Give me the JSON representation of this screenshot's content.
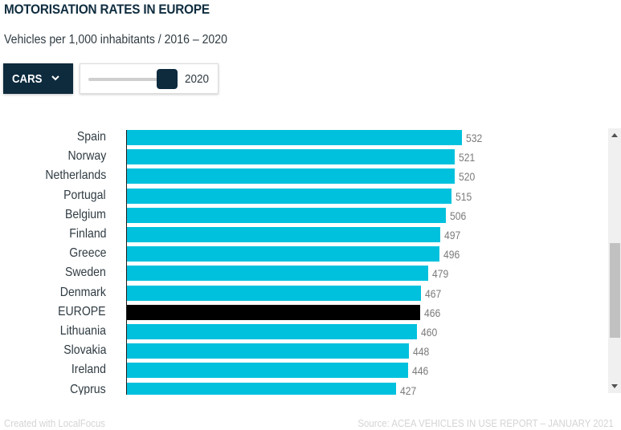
{
  "header": {
    "title": "MOTORISATION RATES IN EUROPE",
    "subtitle": "Vehicles per 1,000 inhabitants / 2016 – 2020"
  },
  "controls": {
    "vehicle_type": "CARS",
    "year_slider": {
      "min": 2016,
      "max": 2020,
      "value": 2020,
      "label": "2020"
    }
  },
  "colors": {
    "bar": "#00c1dd",
    "highlight": "#000000",
    "brand": "#0e2b3e"
  },
  "chart_data": {
    "type": "bar",
    "orientation": "horizontal",
    "title": "MOTORISATION RATES IN EUROPE",
    "subtitle": "Vehicles per 1,000 inhabitants / 2016 – 2020",
    "xlabel": "",
    "ylabel": "",
    "categories": [
      "Spain",
      "Norway",
      "Netherlands",
      "Portugal",
      "Belgium",
      "Finland",
      "Greece",
      "Sweden",
      "Denmark",
      "EUROPE",
      "Lithuania",
      "Slovakia",
      "Ireland",
      "Cyprus"
    ],
    "values": [
      532,
      521,
      520,
      515,
      506,
      497,
      496,
      479,
      467,
      466,
      460,
      448,
      446,
      427
    ],
    "highlight": "EUROPE",
    "xlim": [
      0,
      532
    ],
    "grid": false,
    "legend": "none",
    "data_labels": true
  },
  "footer": {
    "credit": "Created with LocalFocus",
    "source": "Source:  ACEA VEHICLES IN USE REPORT – JANUARY 2021"
  }
}
